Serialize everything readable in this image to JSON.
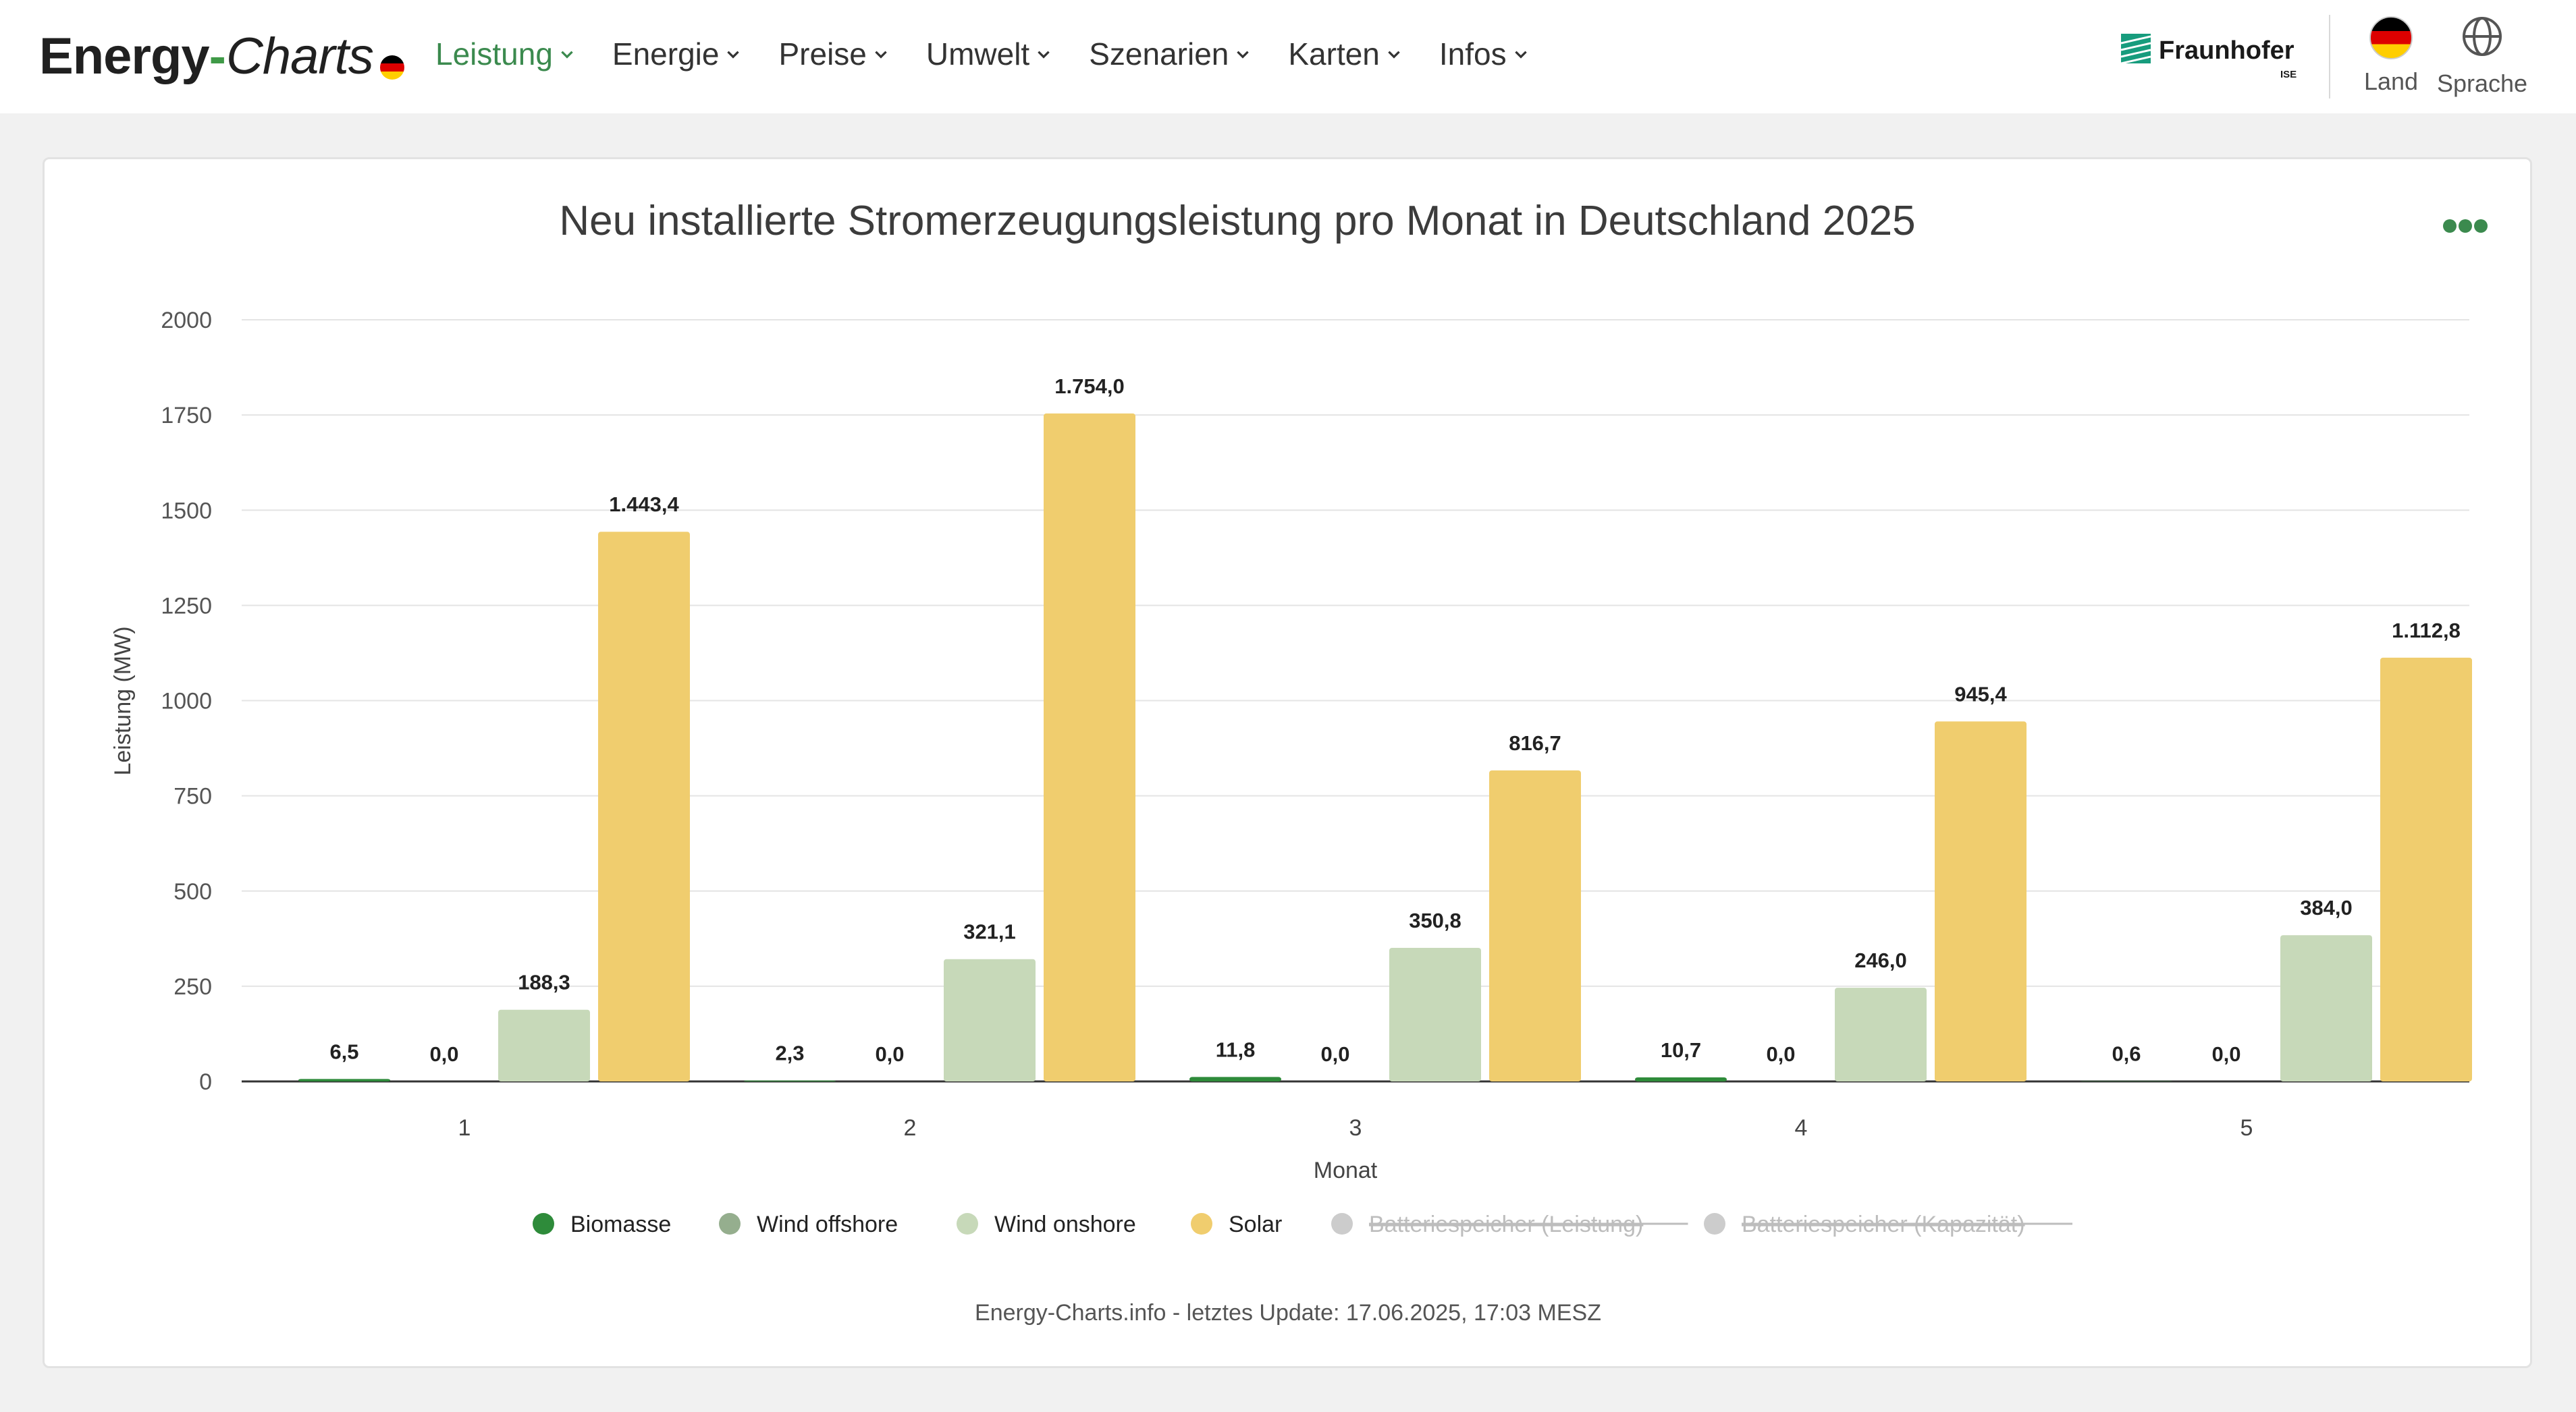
{
  "header": {
    "logo": {
      "part1": "Energy",
      "dash": "-",
      "part2": "Charts"
    },
    "nav": [
      {
        "label": "Leistung",
        "active": true
      },
      {
        "label": "Energie",
        "active": false
      },
      {
        "label": "Preise",
        "active": false
      },
      {
        "label": "Umwelt",
        "active": false
      },
      {
        "label": "Szenarien",
        "active": false
      },
      {
        "label": "Karten",
        "active": false
      },
      {
        "label": "Infos",
        "active": false
      }
    ],
    "institution": {
      "name": "Fraunhofer",
      "sub": "ISE"
    },
    "tools": {
      "country_label": "Land",
      "language_label": "Sprache"
    },
    "accent_color": "#3b8a4e"
  },
  "chart_data": {
    "type": "bar",
    "title": "Neu installierte Stromerzeugungsleistung pro Monat in Deutschland 2025",
    "xlabel": "Monat",
    "ylabel": "Leistung (MW)",
    "categories": [
      "1",
      "2",
      "3",
      "4",
      "5"
    ],
    "ylim": [
      0,
      2000
    ],
    "yticks": [
      0,
      250,
      500,
      750,
      1000,
      1250,
      1500,
      1750,
      2000
    ],
    "grid": true,
    "legend_position": "bottom",
    "series": [
      {
        "name": "Biomasse",
        "color": "#2e8b3a",
        "visible": true,
        "values": [
          6.5,
          2.3,
          11.8,
          10.7,
          0.6
        ],
        "labels": [
          "6,5",
          "2,3",
          "11,8",
          "10,7",
          "0,6"
        ]
      },
      {
        "name": "Wind offshore",
        "color": "#95ae8e",
        "visible": true,
        "values": [
          0.0,
          0.0,
          0.0,
          0.0,
          0.0
        ],
        "labels": [
          "0,0",
          "0,0",
          "0,0",
          "0,0",
          "0,0"
        ]
      },
      {
        "name": "Wind onshore",
        "color": "#c7d9b9",
        "visible": true,
        "values": [
          188.3,
          321.1,
          350.8,
          246.0,
          384.0
        ],
        "labels": [
          "188,3",
          "321,1",
          "350,8",
          "246,0",
          "384,0"
        ]
      },
      {
        "name": "Solar",
        "color": "#f0cd6e",
        "visible": true,
        "values": [
          1443.4,
          1754.0,
          816.7,
          945.4,
          1112.8
        ],
        "labels": [
          "1.443,4",
          "1.754,0",
          "816,7",
          "945,4",
          "1.112,8"
        ]
      },
      {
        "name": "Batteriespeicher (Leistung)",
        "color": "#cccccc",
        "visible": false
      },
      {
        "name": "Batteriespeicher (Kapazität)",
        "color": "#cccccc",
        "visible": false
      }
    ]
  },
  "footer": {
    "text": "Energy-Charts.info - letztes Update: 17.06.2025, 17:03 MESZ"
  }
}
